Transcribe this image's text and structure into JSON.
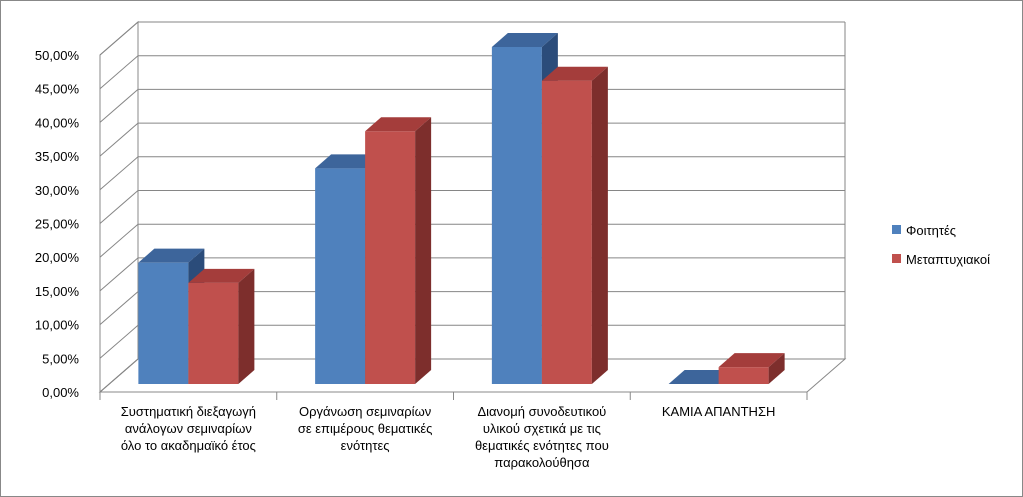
{
  "chart_data": {
    "type": "bar",
    "style": "3d-clustered-column",
    "categories": [
      [
        "Συστηματική διεξαγωγή",
        "ανάλογων σεμιναρίων",
        "όλο το ακαδημαϊκό έτος"
      ],
      [
        "Οργάνωση σεμιναρίων",
        "σε επιμέρους θεματικές",
        "ενότητες"
      ],
      [
        "Διανομή συνοδευτικού",
        "υλικού σχετικά με τις",
        "θεματικές ενότητες που",
        "παρακολούθησα"
      ],
      [
        "ΚΑΜΙΑ ΑΠΑΝΤΗΣΗ"
      ]
    ],
    "series": [
      {
        "name": "Φοιτητές",
        "values": [
          0.18,
          0.32,
          0.5,
          0.0
        ],
        "color": "#4f81bd",
        "top_color": "#3d659b",
        "side_color": "#2b4c7a"
      },
      {
        "name": "Μεταπτυχιακοί",
        "values": [
          0.15,
          0.375,
          0.45,
          0.025
        ],
        "color": "#c0504d",
        "top_color": "#a43d3b",
        "side_color": "#7d2e2c"
      }
    ],
    "yticks": [
      "0,00%",
      "5,00%",
      "10,00%",
      "15,00%",
      "20,00%",
      "25,00%",
      "30,00%",
      "35,00%",
      "40,00%",
      "45,00%",
      "50,00%"
    ],
    "ylim": [
      0,
      0.5
    ],
    "grid": true,
    "legend": "right",
    "title": "",
    "xlabel": "",
    "ylabel": ""
  }
}
